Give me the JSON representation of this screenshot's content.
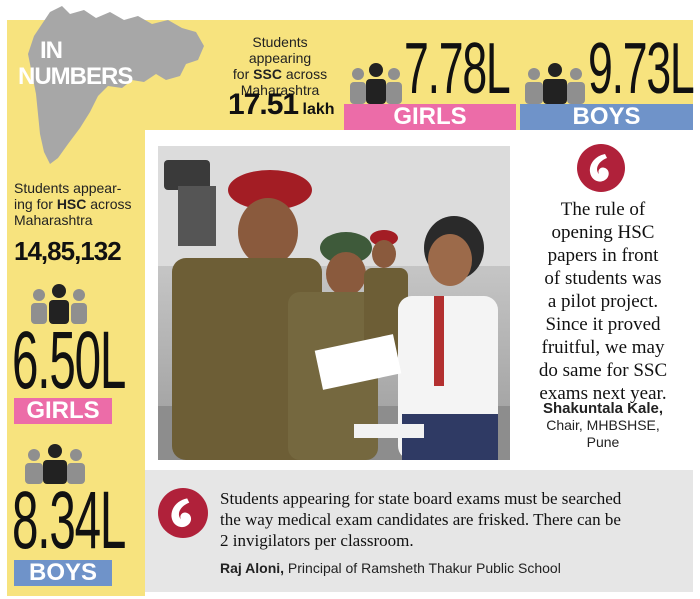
{
  "header": {
    "label_line1": "IN",
    "label_line2": "NUMBERS"
  },
  "ssc": {
    "caption_line1": "Students appearing",
    "caption_line2_pre": "for ",
    "exam": "SSC",
    "caption_line2_post": " across",
    "caption_line3": "Maharashtra",
    "total": "17.51",
    "unit": "lakh",
    "girls": "7.78L",
    "girls_label": "GIRLS",
    "boys": "9.73L",
    "boys_label": "BOYS"
  },
  "hsc": {
    "caption_line1": "Students appear-",
    "caption_line2_pre": "ing for ",
    "exam": "HSC",
    "caption_line2_post": " across",
    "caption_line3": "Maharashtra",
    "total": "14,85,132",
    "girls": "6.50L",
    "girls_label": "GIRLS",
    "boys": "8.34L",
    "boys_label": "BOYS"
  },
  "quote_official": {
    "line1": "The rule of",
    "line2": "opening HSC",
    "line3": "papers in front",
    "line4": "of students was",
    "line5": "a pilot project.",
    "line6": "Since it proved",
    "line7": "fruitful, we may",
    "line8": "do same for SSC exams next year.",
    "name": "Shakuntala Kale,",
    "title": "Chair, MHBSHSE,",
    "place": "Pune"
  },
  "quote_principal": {
    "line1": "Students appearing for state board exams must be searched",
    "line2": "the way medical exam candidates are frisked. There can be",
    "line3": "2 invigilators per classroom.",
    "name": "Raj Aloni,",
    "title": " Principal of Ramsheth Thakur Public School"
  },
  "colors": {
    "panel_yellow": "#f7e37e",
    "girls_pink": "#ec6ca8",
    "boys_blue": "#6f93c9",
    "quote_red": "#b0213a",
    "quote_box_grey": "#e6e6e6"
  }
}
